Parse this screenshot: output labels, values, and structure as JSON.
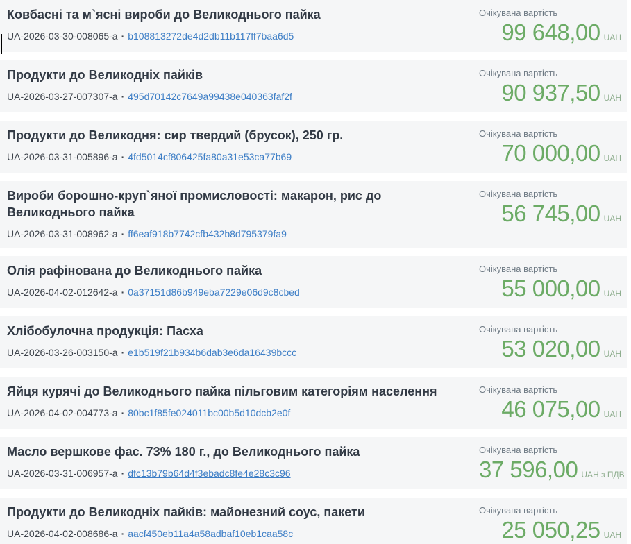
{
  "list": {
    "expected_value_label": "Очікувана вартість",
    "separator": "·"
  },
  "colors": {
    "card_background": "#f5f6f7",
    "title": "#323a45",
    "tender_id": "#3e444c",
    "hash_link": "#3d7ec6",
    "expected_label": "#6e7a84",
    "price_green": "#6cab66",
    "currency_suffix": "#8fae8f"
  },
  "tenders": [
    {
      "title": "Ковбасні та м`ясні вироби до Великоднього пайка",
      "tender_id": "UA-2026-03-30-008065-a",
      "hash": "b108813272de4d2db11b117ff7baa6d5",
      "amount": "99 648,00",
      "currency": "UAH",
      "hash_underlined": false
    },
    {
      "title": "Продукти до Великодніх пайків",
      "tender_id": "UA-2026-03-27-007307-a",
      "hash": "495d70142c7649a99438e040363faf2f",
      "amount": "90 937,50",
      "currency": "UAH",
      "hash_underlined": false
    },
    {
      "title": "Продукти до Великодня: сир твердий (брусок), 250 гр.",
      "tender_id": "UA-2026-03-31-005896-a",
      "hash": "4fd5014cf806425fa80a31e53ca77b69",
      "amount": "70 000,00",
      "currency": "UAH",
      "hash_underlined": false
    },
    {
      "title": "Вироби борошно-круп`яної промисловості: макарон, рис до Великоднього пайка",
      "tender_id": "UA-2026-03-31-008962-a",
      "hash": "ff6eaf918b7742cfb432b8d795379fa9",
      "amount": "56 745,00",
      "currency": "UAH",
      "hash_underlined": false
    },
    {
      "title": "Олія рафінована до Великоднього пайка",
      "tender_id": "UA-2026-04-02-012642-a",
      "hash": "0a37151d86b949eba7229e06d9c8cbed",
      "amount": "55 000,00",
      "currency": "UAH",
      "hash_underlined": false
    },
    {
      "title": "Хлібобулочна продукція: Пасха",
      "tender_id": "UA-2026-03-26-003150-a",
      "hash": "e1b519f21b934b6dab3e6da16439bccc",
      "amount": "53 020,00",
      "currency": "UAH",
      "hash_underlined": false
    },
    {
      "title": "Яйця курячі до Великоднього пайка пільговим категоріям населення",
      "tender_id": "UA-2026-04-02-004773-a",
      "hash": "80bc1f85fe024011bc00b5d10dcb2e0f",
      "amount": "46 075,00",
      "currency": "UAH",
      "hash_underlined": false
    },
    {
      "title": "Масло вершкове фас. 73% 180 г., до Великоднього пайка",
      "tender_id": "UA-2026-03-31-006957-a",
      "hash": "dfc13b79b64d4f3ebadc8fe4e28c3c96",
      "amount": "37 596,00",
      "currency": "UAH з ПДВ",
      "hash_underlined": true
    },
    {
      "title": "Продукти до Великодніх пайків: майонезний соус, пакети",
      "tender_id": "UA-2026-04-02-008686-a",
      "hash": "aacf450eb11a4a58adbaf10eb1caa58c",
      "amount": "25 050,25",
      "currency": "UAH",
      "hash_underlined": false
    }
  ]
}
